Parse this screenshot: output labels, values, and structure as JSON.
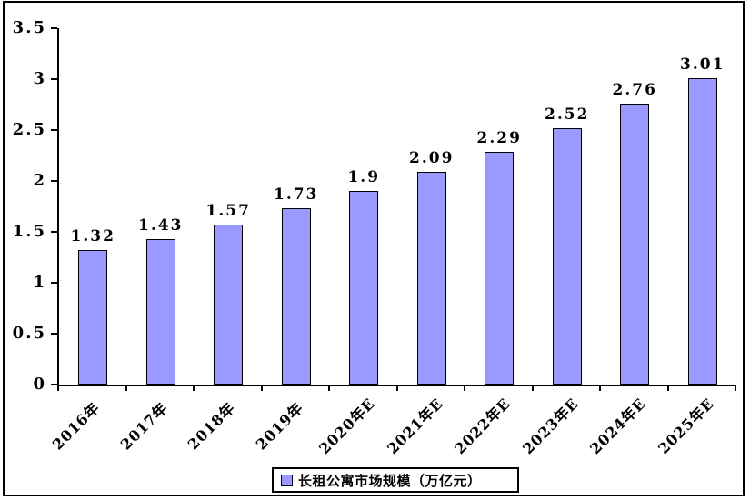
{
  "chart_data": {
    "type": "bar",
    "title": "",
    "categories": [
      "2016年",
      "2017年",
      "2018年",
      "2019年",
      "2020年E",
      "2021年E",
      "2022年E",
      "2023年E",
      "2024年E",
      "2025年E"
    ],
    "values": [
      1.32,
      1.43,
      1.57,
      1.73,
      1.9,
      2.09,
      2.29,
      2.52,
      2.76,
      3.01
    ],
    "value_labels": [
      "1.32",
      "1.43",
      "1.57",
      "1.73",
      "1.9",
      "2.09",
      "2.29",
      "2.52",
      "2.76",
      "3.01"
    ],
    "legend": {
      "label": "长租公寓市场规模（万亿元）",
      "marker": "square",
      "position": "bottom-center"
    },
    "yaxis": {
      "min": 0,
      "max": 3.5,
      "step": 0.5,
      "tick_labels": [
        "0",
        "0.5",
        "1",
        "1.5",
        "2",
        "2.5",
        "3",
        "3.5"
      ]
    },
    "xlabel": "",
    "ylabel": "",
    "grid": false,
    "colors": {
      "bar_fill": "#9999FF",
      "bar_border": "#000000",
      "axis": "#000000",
      "frame_border": "#000000",
      "background": "#FFFFFF",
      "text": "#000000"
    }
  }
}
